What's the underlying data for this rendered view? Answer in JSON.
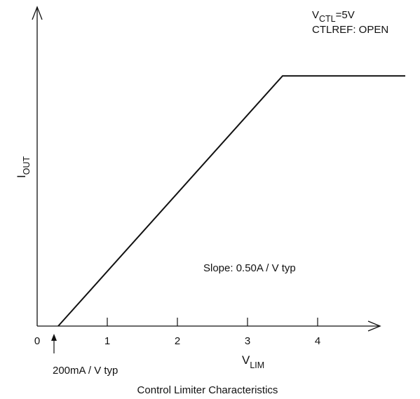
{
  "chart_data": {
    "type": "line",
    "title": "",
    "caption": "Control Limiter Characteristics",
    "xlabel": {
      "main": "V",
      "sub": "LIM"
    },
    "ylabel": {
      "main": "I",
      "sub": "OUT"
    },
    "xlim": [
      0,
      5
    ],
    "x_ticks": [
      0,
      1,
      2,
      3,
      4
    ],
    "x_tick_labels": [
      "0",
      "1",
      "2",
      "3",
      "4"
    ],
    "y_axis_values_shown": false,
    "grid": false,
    "legend": "none",
    "series": [
      {
        "x": [
          0.3,
          3.5,
          5.25
        ],
        "y": [
          0,
          1.6,
          1.6
        ]
      }
    ],
    "conditions": {
      "line1_main": "V",
      "line1_sub": "CTL",
      "line1_rest": "=5V",
      "line2": "CTLREF: OPEN"
    },
    "annotations": {
      "slope": "Slope: 0.50A / V typ",
      "start": "200mA / V typ"
    },
    "line_color": "#111111"
  }
}
